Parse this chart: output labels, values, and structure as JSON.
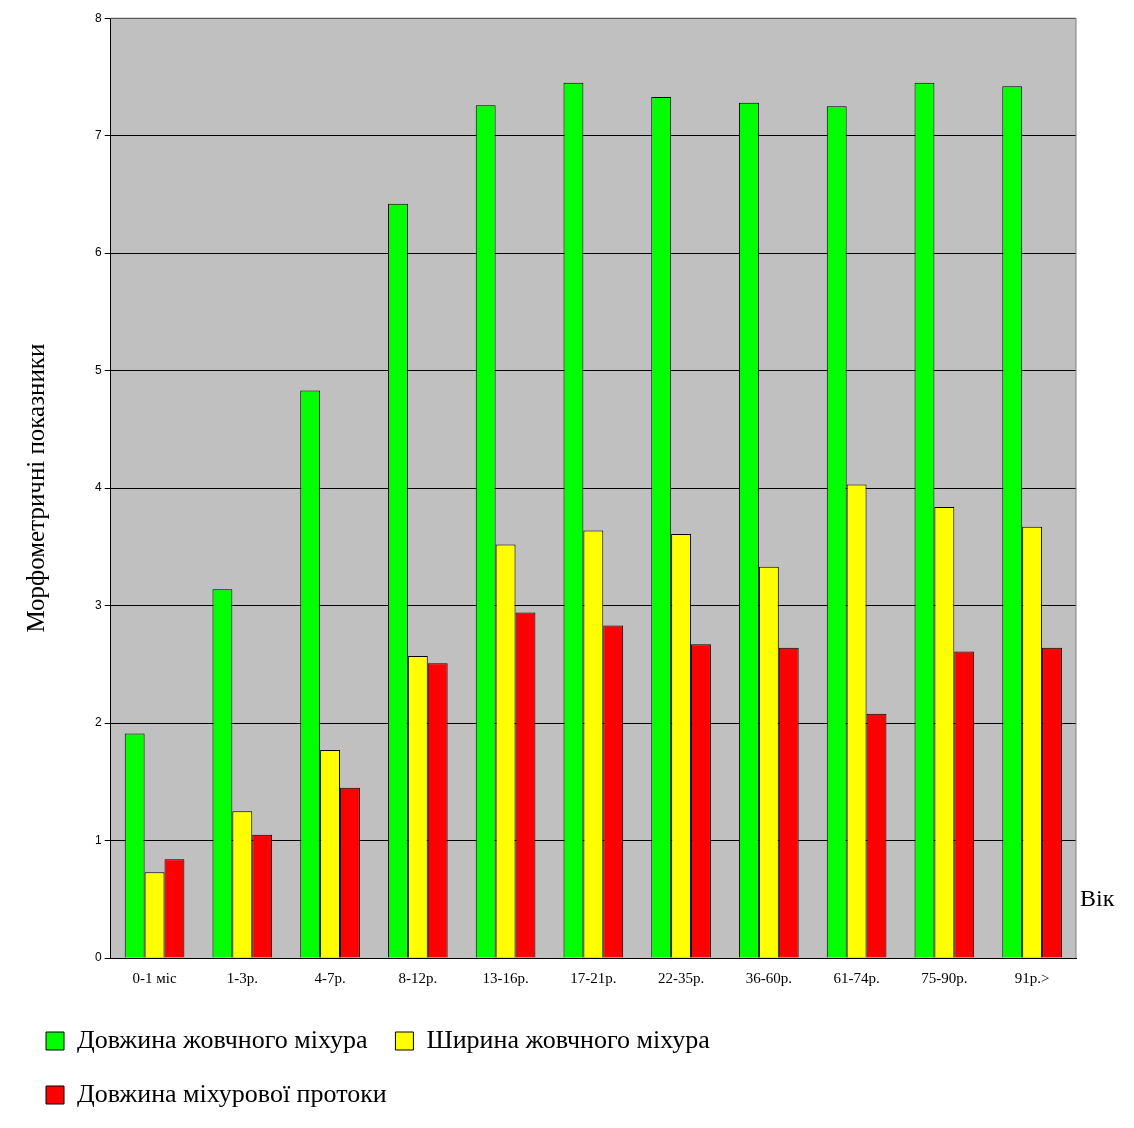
{
  "chart_data": {
    "type": "bar",
    "ylabel": "Морфометричні показники",
    "xlabel": "Вік",
    "categories": [
      "0-1 міс",
      "1-3р.",
      "4-7р.",
      "8-12р.",
      "13-16р.",
      "17-21р.",
      "22-35р.",
      "36-60р.",
      "61-74р.",
      "75-90р.",
      "91р.>"
    ],
    "series": [
      {
        "name": "Довжина жовчного міхура",
        "color": "#00ff00",
        "values": [
          1.91,
          3.14,
          4.83,
          6.42,
          7.26,
          7.45,
          7.33,
          7.28,
          7.25,
          7.45,
          7.42
        ]
      },
      {
        "name": "Ширина жовчного міхура",
        "color": "#ffff00",
        "values": [
          0.73,
          1.25,
          1.77,
          2.57,
          3.52,
          3.64,
          3.61,
          3.33,
          4.03,
          3.84,
          3.67
        ]
      },
      {
        "name": "Довжина міхурової протоки",
        "color": "#ff0000",
        "values": [
          0.84,
          1.05,
          1.45,
          2.51,
          2.94,
          2.83,
          2.67,
          2.64,
          2.08,
          2.61,
          2.64
        ]
      }
    ],
    "ylim": [
      0,
      8
    ],
    "yticks": [
      0,
      1,
      2,
      3,
      4,
      5,
      6,
      7,
      8
    ],
    "grid": "y",
    "legend": "bottom"
  }
}
